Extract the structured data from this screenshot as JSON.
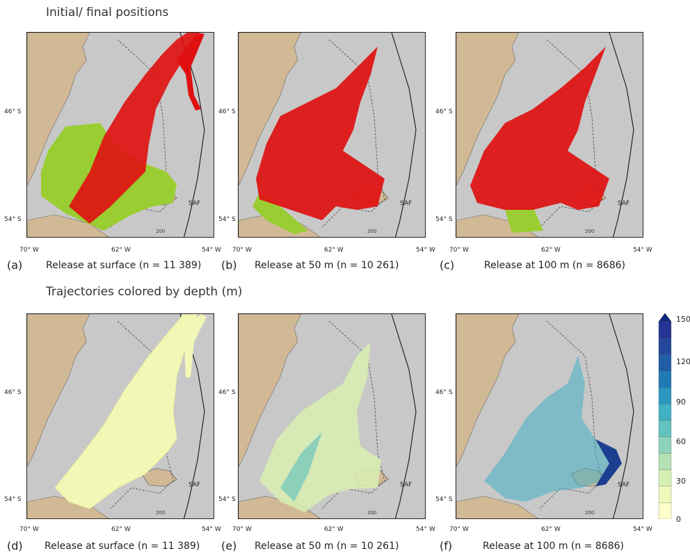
{
  "titles": {
    "top": "Initial/ final positions",
    "bottom": "Trajectories colored by depth (m)"
  },
  "axes": {
    "lat_ticks": [
      "46° S",
      "54° S"
    ],
    "lon_ticks": [
      "70° W",
      "62° W",
      "54° W"
    ],
    "isobath_label": "200",
    "front_label": "SAF"
  },
  "panels": [
    {
      "id": "a",
      "label": "(a)",
      "caption": "Release at surface (n = 11 389)"
    },
    {
      "id": "b",
      "label": "(b)",
      "caption": "Release at 50 m (n = 10 261)"
    },
    {
      "id": "c",
      "label": "(c)",
      "caption": "Release at 100 m (n = 8686)"
    },
    {
      "id": "d",
      "label": "(d)",
      "caption": "Release at surface (n = 11 389)"
    },
    {
      "id": "e",
      "label": "(e)",
      "caption": "Release at 50 m (n = 10 261)"
    },
    {
      "id": "f",
      "label": "(f)",
      "caption": "Release at 100 m (n = 8686)"
    }
  ],
  "colorbar": {
    "ticks": [
      "150",
      "120",
      "90",
      "60",
      "30",
      "0"
    ],
    "colors": [
      "#ffffcc",
      "#eef8b8",
      "#d6efb3",
      "#b4e1b6",
      "#8dd3bb",
      "#63c3c0",
      "#41b1c4",
      "#2c97c0",
      "#2179b5",
      "#225ea8",
      "#23489b",
      "#253494",
      "#0c2c84"
    ]
  },
  "colors": {
    "land": "#d2b996",
    "ocean": "#c8c8c8",
    "initial": "#9acd32",
    "final": "#e01010"
  }
}
